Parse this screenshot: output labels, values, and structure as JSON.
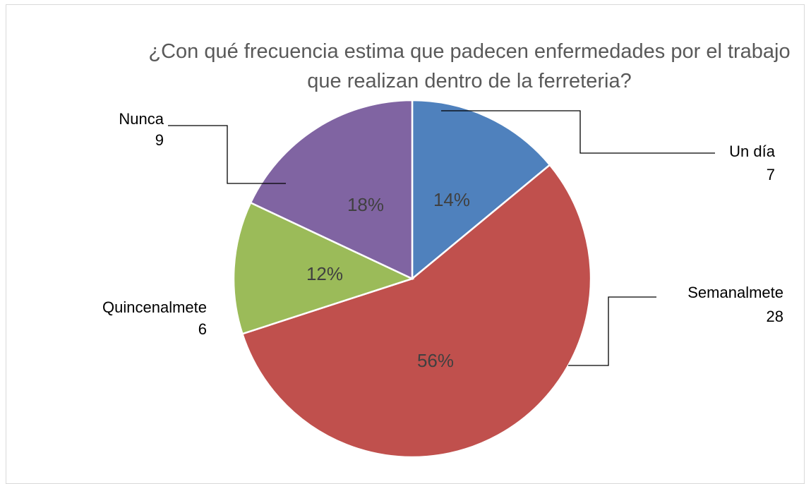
{
  "chart_data": {
    "type": "pie",
    "title": "¿Con qué frecuencia estima que padecen enfermedades por el trabajo que realizan dentro de la ferreteria?",
    "categories": [
      "Un día",
      "Semanalmete",
      "Quincenalmete",
      "Nunca"
    ],
    "values": [
      7,
      28,
      6,
      9
    ],
    "percentages": [
      14,
      56,
      12,
      18
    ],
    "percentage_labels": [
      "14%",
      "56%",
      "12%",
      "18%"
    ],
    "colors": [
      "#4f81bd",
      "#c0504d",
      "#9bbb59",
      "#8064a2"
    ]
  }
}
